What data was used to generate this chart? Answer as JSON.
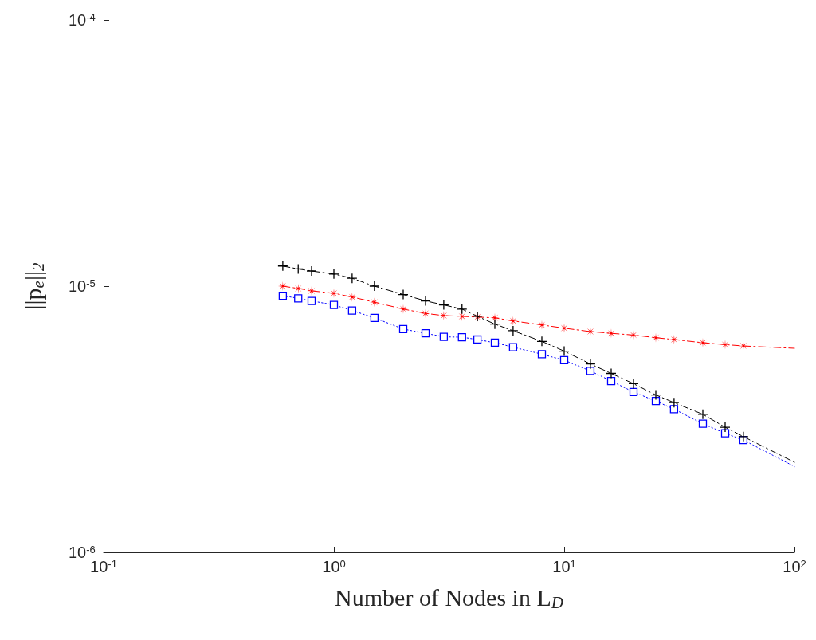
{
  "chart_data": {
    "type": "line",
    "xlabel": "Number of Nodes in L$_{D}$",
    "ylabel": "||p$_{e}$||$_{2}$",
    "log": "xy",
    "grid": false,
    "xlim": [
      0.1,
      100
    ],
    "xticks": [
      {
        "value": 0.1,
        "label": "10$^{-1}$"
      },
      {
        "value": 1,
        "label": "10$^{0}$"
      },
      {
        "value": 10,
        "label": "10$^{1}$"
      },
      {
        "value": 100,
        "label": "10$^{2}$"
      }
    ],
    "ylim": [
      1e-06,
      0.0001
    ],
    "yticks": [
      {
        "value": 1e-06,
        "label": "10$^{-6}$"
      },
      {
        "value": 1e-05,
        "label": "10$^{-5}$"
      },
      {
        "value": 0.0001,
        "label": "10$^{-4}$"
      }
    ],
    "series": [
      {
        "color": "#000000",
        "marker": "cross",
        "line_style": "dashed",
        "x": [
          0.6,
          0.7,
          0.8,
          1,
          1.2,
          1.5,
          2,
          2.5,
          3,
          3.6,
          4.2,
          5,
          6,
          8,
          10,
          13,
          16,
          20,
          25,
          30,
          40,
          50,
          60
        ],
        "values": [
          1.19e-05,
          1.16e-05,
          1.14e-05,
          1.11e-05,
          1.07e-05,
          1e-05,
          9.3e-06,
          8.8e-06,
          8.5e-06,
          8.2e-06,
          7.7e-06,
          7.2e-06,
          6.8e-06,
          6.2e-06,
          5.7e-06,
          5.1e-06,
          4.7e-06,
          4.3e-06,
          3.9e-06,
          3.65e-06,
          3.3e-06,
          2.95e-06,
          2.72e-06
        ]
      },
      {
        "color": "#ff0000",
        "marker": "star",
        "line_style": "dashed",
        "x": [
          0.6,
          0.7,
          0.8,
          1,
          1.2,
          1.5,
          2,
          2.5,
          3,
          3.6,
          4.2,
          5,
          6,
          8,
          10,
          13,
          16,
          20,
          25,
          30,
          40,
          50,
          60
        ],
        "values": [
          1e-05,
          9.8e-06,
          9.6e-06,
          9.4e-06,
          9.1e-06,
          8.7e-06,
          8.2e-06,
          7.9e-06,
          7.75e-06,
          7.7e-06,
          7.65e-06,
          7.6e-06,
          7.4e-06,
          7.15e-06,
          6.95e-06,
          6.75e-06,
          6.65e-06,
          6.55e-06,
          6.4e-06,
          6.3e-06,
          6.13e-06,
          6.03e-06,
          5.96e-06
        ]
      },
      {
        "color": "#0000ff",
        "marker": "square",
        "line_style": "dotted",
        "x": [
          0.6,
          0.7,
          0.8,
          1,
          1.2,
          1.5,
          2,
          2.5,
          3,
          3.6,
          4.2,
          5,
          6,
          8,
          10,
          13,
          16,
          20,
          25,
          30,
          40,
          50,
          60
        ],
        "values": [
          9.2e-06,
          9e-06,
          8.8e-06,
          8.5e-06,
          8.1e-06,
          7.6e-06,
          6.9e-06,
          6.65e-06,
          6.45e-06,
          6.43e-06,
          6.3e-06,
          6.13e-06,
          5.9e-06,
          5.55e-06,
          5.27e-06,
          4.8e-06,
          4.4e-06,
          4e-06,
          3.7e-06,
          3.45e-06,
          3.04e-06,
          2.8e-06,
          2.64e-06
        ]
      },
      {
        "color": "#000000",
        "marker": "none",
        "line_style": "dashed",
        "x": [
          60,
          100
        ],
        "values": [
          2.72e-06,
          2.18e-06
        ]
      },
      {
        "color": "#ff0000",
        "marker": "none",
        "line_style": "dashed",
        "x": [
          60,
          100
        ],
        "values": [
          5.96e-06,
          5.84e-06
        ]
      },
      {
        "color": "#0000ff",
        "marker": "none",
        "line_style": "dotted",
        "x": [
          60,
          100
        ],
        "values": [
          2.64e-06,
          2.1e-06
        ]
      }
    ]
  }
}
